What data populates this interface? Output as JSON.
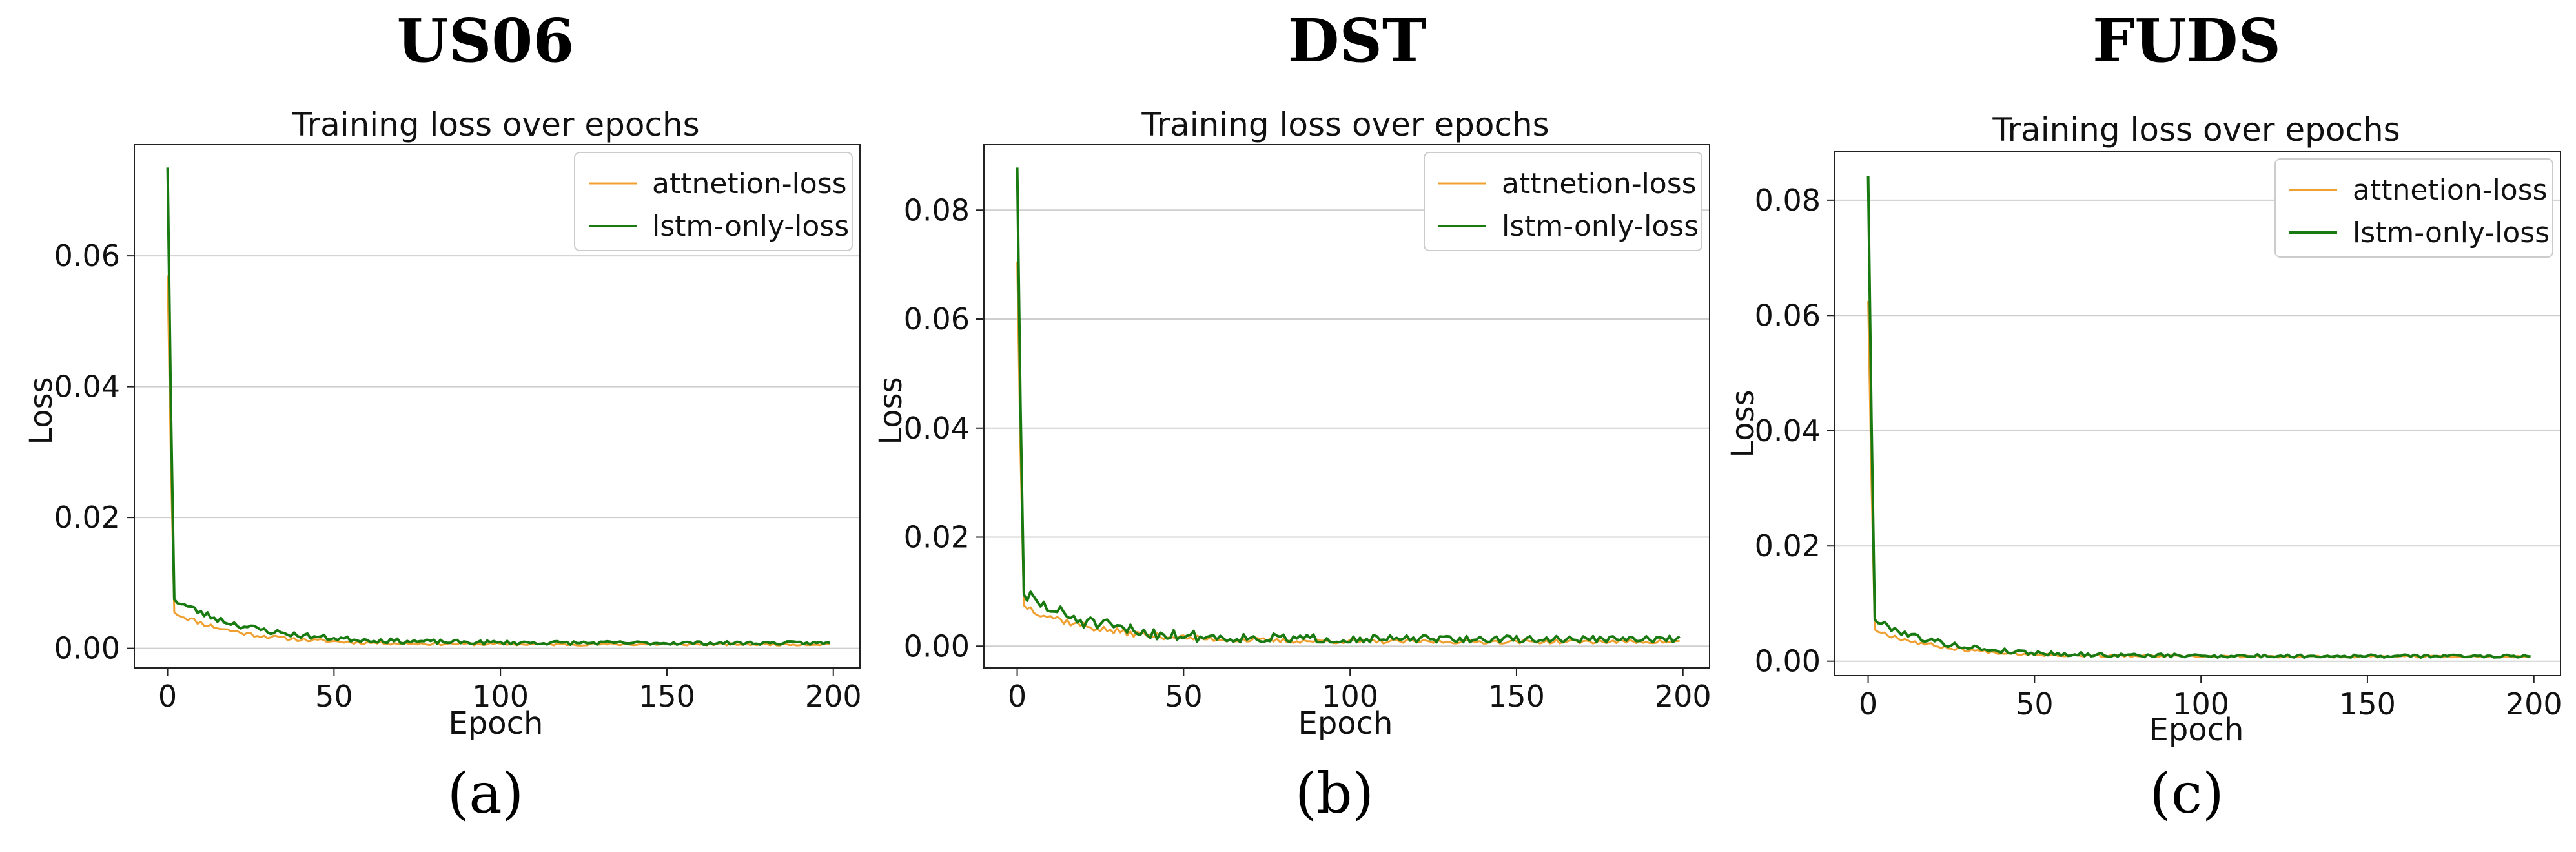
{
  "colors": {
    "attention": "#f0a030",
    "lstm": "#1a7a12"
  },
  "chart_data": [
    {
      "type": "line",
      "dataset_title": "US06",
      "panel_label": "(a)",
      "title": "Training  loss over epochs",
      "xlabel": "Epoch",
      "ylabel": "Loss",
      "xlim": [
        -10,
        208
      ],
      "ylim": [
        -0.003,
        0.077
      ],
      "xticks": [
        0,
        50,
        100,
        150,
        200
      ],
      "yticks": [
        0.0,
        0.02,
        0.04,
        0.06
      ],
      "ytick_labels": [
        "0.00",
        "0.02",
        "0.04",
        "0.06"
      ],
      "grid": "y",
      "legend_position": "top-right",
      "series": [
        {
          "name": "attnetion-loss",
          "color_key": "attention",
          "start": 0.057,
          "second": 0.0055,
          "floor": 0.0006,
          "decay": 20,
          "noise": 0.0004,
          "seed": 11
        },
        {
          "name": "lstm-only-loss",
          "color_key": "lstm",
          "start": 0.0735,
          "second": 0.0075,
          "floor": 0.0008,
          "decay": 22,
          "noise": 0.0006,
          "seed": 23
        }
      ]
    },
    {
      "type": "line",
      "dataset_title": "DST",
      "panel_label": "(b)",
      "title": "Training  loss over epochs",
      "xlabel": "Epoch",
      "ylabel": "Loss",
      "xlim": [
        -10,
        208
      ],
      "ylim": [
        -0.004,
        0.092
      ],
      "xticks": [
        0,
        50,
        100,
        150,
        200
      ],
      "yticks": [
        0.0,
        0.02,
        0.04,
        0.06,
        0.08
      ],
      "ytick_labels": [
        "0.00",
        "0.02",
        "0.04",
        "0.06",
        "0.08"
      ],
      "grid": "y",
      "legend_position": "top-right",
      "series": [
        {
          "name": "attnetion-loss",
          "color_key": "attention",
          "start": 0.0705,
          "second": 0.0075,
          "floor": 0.0008,
          "decay": 22,
          "noise": 0.0008,
          "seed": 37
        },
        {
          "name": "lstm-only-loss",
          "color_key": "lstm",
          "start": 0.0878,
          "second": 0.0095,
          "floor": 0.0012,
          "decay": 20,
          "noise": 0.0016,
          "seed": 51
        }
      ]
    },
    {
      "type": "line",
      "dataset_title": "FUDS",
      "panel_label": "(c)",
      "title": "Training  loss over epochs",
      "xlabel": "Epoch",
      "ylabel": "Loss",
      "xlim": [
        -10,
        208
      ],
      "ylim": [
        -0.0025,
        0.0885
      ],
      "xticks": [
        0,
        50,
        100,
        150,
        200
      ],
      "yticks": [
        0.0,
        0.02,
        0.04,
        0.06,
        0.08
      ],
      "ytick_labels": [
        "0.00",
        "0.02",
        "0.04",
        "0.06",
        "0.08"
      ],
      "grid": "y",
      "legend_position": "top-right",
      "series": [
        {
          "name": "attnetion-loss",
          "color_key": "attention",
          "start": 0.0625,
          "second": 0.0055,
          "floor": 0.0008,
          "decay": 20,
          "noise": 0.0004,
          "seed": 67
        },
        {
          "name": "lstm-only-loss",
          "color_key": "lstm",
          "start": 0.0842,
          "second": 0.0072,
          "floor": 0.0009,
          "decay": 20,
          "noise": 0.0006,
          "seed": 79
        }
      ]
    }
  ]
}
